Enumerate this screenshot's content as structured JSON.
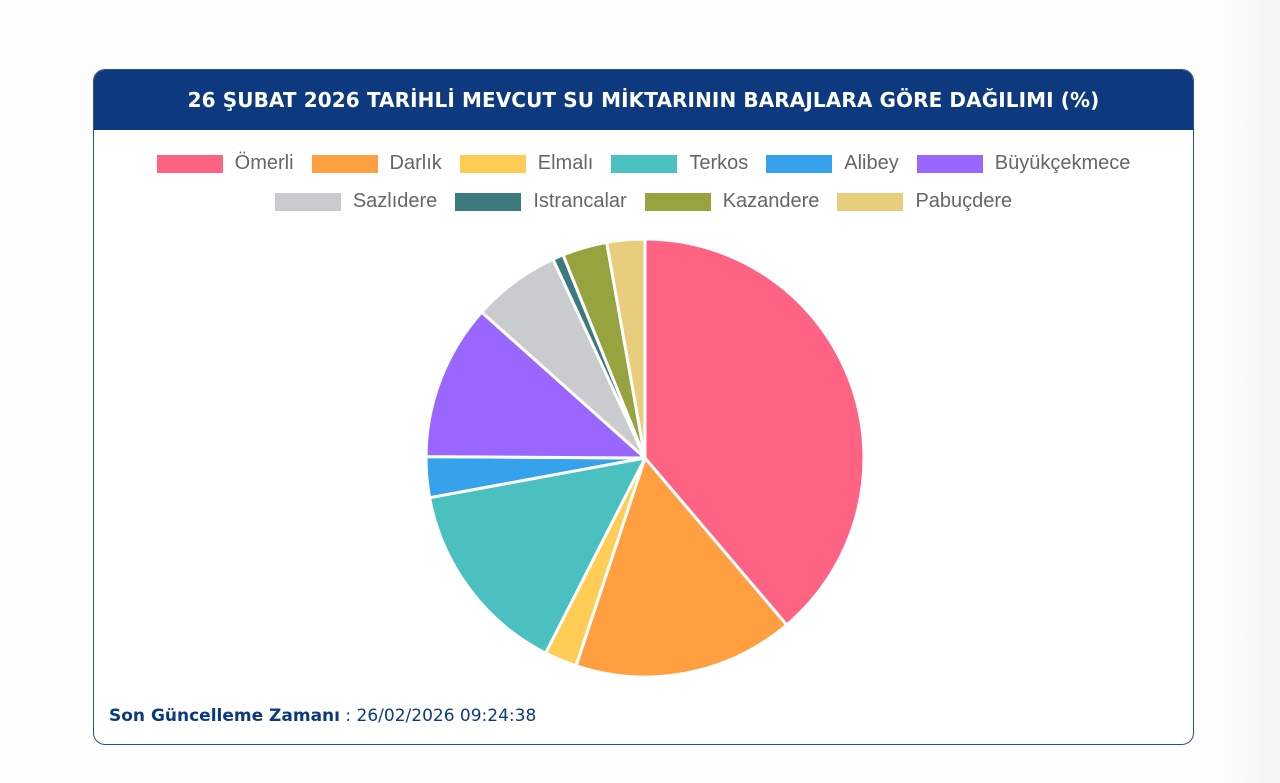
{
  "header": {
    "title": "26 ŞUBAT 2026 TARİHLİ MEVCUT SU MİKTARININ BARAJLARA GÖRE DAĞILIMI (%)"
  },
  "legend": {
    "rows": [
      [
        0,
        1,
        2,
        3,
        4,
        5
      ],
      [
        6,
        7,
        8,
        9
      ]
    ]
  },
  "footer": {
    "label": "Son Güncelleme Zamanı",
    "separator": " : ",
    "value": "26/02/2026 09:24:38"
  },
  "colors": {
    "header_bg": "#0d3a7e",
    "border": "#2c4f8a"
  },
  "chart_data": {
    "type": "pie",
    "title": "26 ŞUBAT 2026 TARİHLİ MEVCUT SU MİKTARININ BARAJLARA GÖRE DAĞILIMI (%)",
    "categories": [
      "Ömerli",
      "Darlık",
      "Elmalı",
      "Terkos",
      "Alibey",
      "Büyükçekmece",
      "Sazlıdere",
      "Istrancalar",
      "Kazandere",
      "Pabuçdere"
    ],
    "values": [
      38.8,
      16.3,
      2.4,
      14.6,
      3.0,
      11.5,
      6.5,
      0.8,
      3.3,
      2.8
    ],
    "colors": [
      "#ff6384",
      "#ff9f40",
      "#ffcd56",
      "#4bc0c0",
      "#36a2eb",
      "#9966ff",
      "#c9cbcf",
      "#3d7a7e",
      "#97a33e",
      "#e8cd7d"
    ],
    "legend_position": "top",
    "start_angle_deg": 0,
    "direction": "clockwise"
  }
}
